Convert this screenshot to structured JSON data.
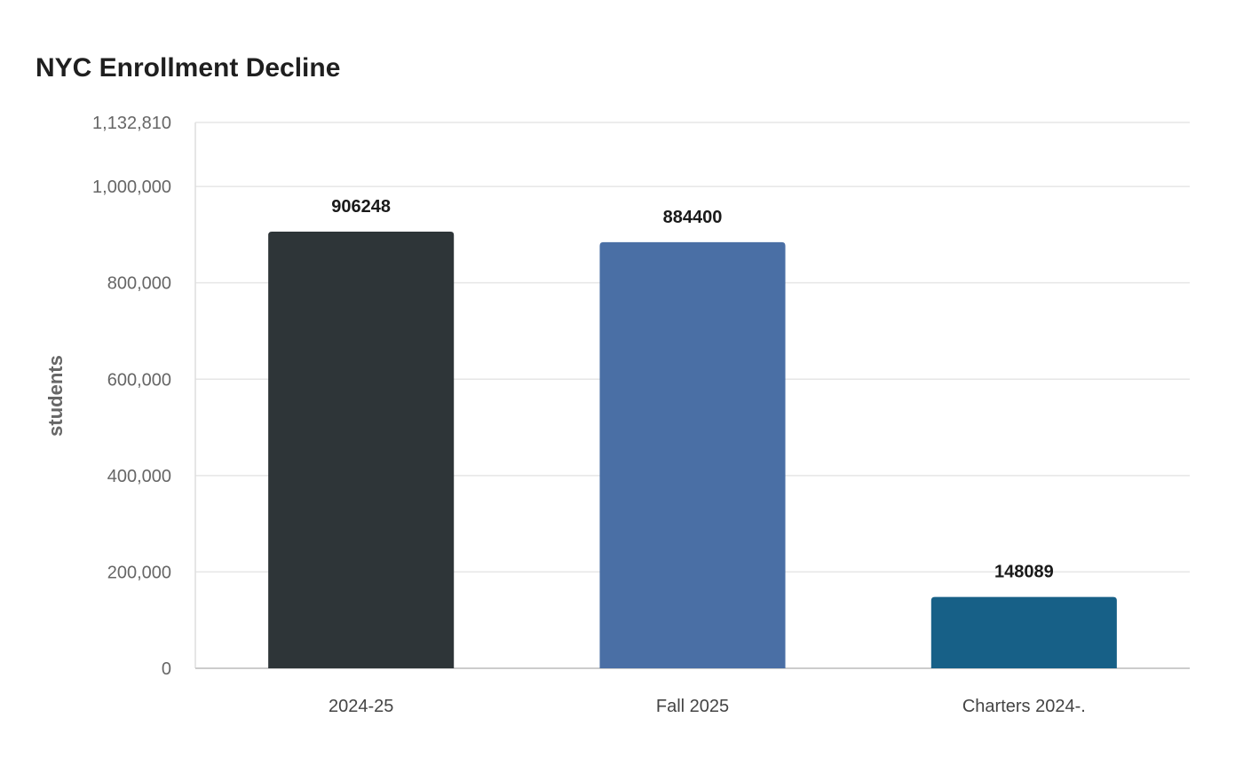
{
  "chart_data": {
    "type": "bar",
    "title": "NYC Enrollment Decline",
    "xlabel": "",
    "ylabel": "students",
    "categories": [
      "2024-25",
      "Fall 2025",
      "Charters 2024-."
    ],
    "values": [
      906248,
      884400,
      148089
    ],
    "value_labels": [
      "906248",
      "884400",
      "148089"
    ],
    "colors": [
      "#2e3538",
      "#4a6fa5",
      "#176087"
    ],
    "ylim": [
      0,
      1132810
    ],
    "y_ticks": [
      0,
      200000,
      400000,
      600000,
      800000,
      1000000,
      1132810
    ],
    "y_tick_labels": [
      "0",
      "200,000",
      "400,000",
      "600,000",
      "800,000",
      "1,000,000",
      "1,132,810"
    ],
    "grid": true,
    "legend": "none"
  }
}
